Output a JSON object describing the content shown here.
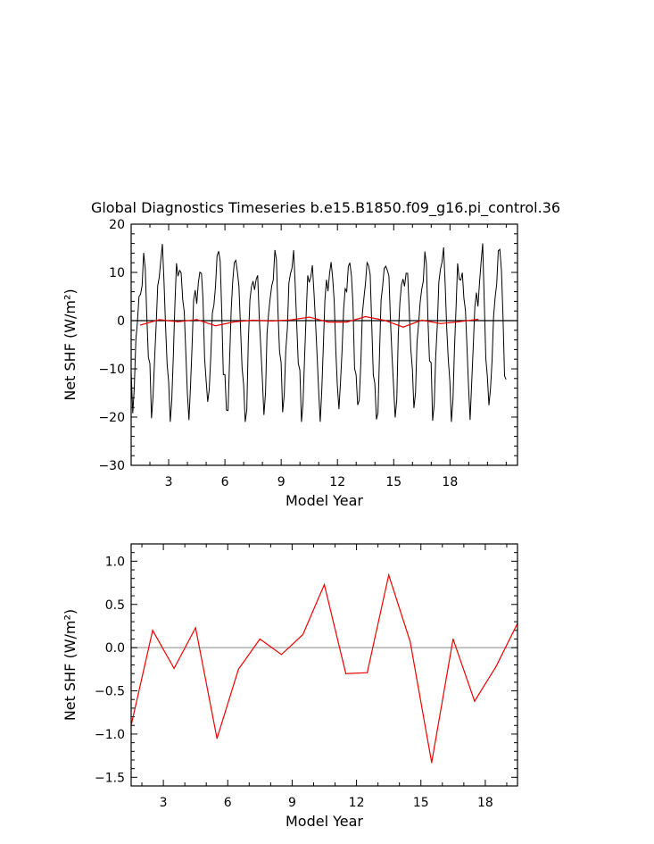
{
  "figure": {
    "title": "Global Diagnostics Timeseries b.e15.B1850.f09_g16.pi_control.36"
  },
  "colors": {
    "monthly": "#000000",
    "annual": "#ee0000",
    "zero_line": "#a0a0a0",
    "axes": "#000000"
  },
  "chart_data": [
    {
      "type": "line",
      "title": "Global Diagnostics Timeseries b.e15.B1850.f09_g16.pi_control.36",
      "xlabel": "Model Year",
      "ylabel": "Net SHF (W/m²)",
      "xlim": [
        1,
        21.6
      ],
      "ylim": [
        -30,
        20
      ],
      "x_ticks": [
        3,
        6,
        9,
        12,
        15,
        18
      ],
      "y_ticks": [
        -30,
        -20,
        -10,
        0,
        10,
        20
      ],
      "y_tick_labels": [
        "−30",
        "−20",
        "−10",
        "0",
        "10",
        "20"
      ],
      "grid": false,
      "monthly_series": {
        "start": 1.0,
        "step": 0.0833,
        "seasonal_cycle": [
          -12,
          -20,
          -16,
          -6,
          2,
          7,
          8,
          10,
          12,
          9,
          1,
          -8
        ],
        "description_values_range": [
          -21,
          16
        ]
      },
      "series": [
        {
          "name": "",
          "color": "#ee0000",
          "x": [
            1.5,
            2.5,
            3.5,
            4.5,
            5.5,
            6.5,
            7.5,
            8.5,
            9.5,
            10.5,
            11.5,
            12.5,
            13.5,
            14.5,
            15.5,
            16.5,
            17.5,
            18.5,
            19.5
          ],
          "y": [
            -0.9,
            0.2,
            -0.24,
            0.23,
            -1.05,
            -0.25,
            0.1,
            -0.08,
            0.15,
            0.73,
            -0.3,
            -0.29,
            0.84,
            0.07,
            -1.33,
            0.1,
            -0.62,
            -0.22,
            0.28
          ]
        }
      ]
    },
    {
      "type": "line",
      "title": "",
      "xlabel": "Model Year",
      "ylabel": "Net SHF (W/m²)",
      "xlim": [
        1.5,
        19.5
      ],
      "ylim": [
        -1.6,
        1.2
      ],
      "x_ticks": [
        3,
        6,
        9,
        12,
        15,
        18
      ],
      "y_ticks": [
        -1.5,
        -1.0,
        -0.5,
        0.0,
        0.5,
        1.0
      ],
      "y_tick_labels": [
        "−1.5",
        "−1.0",
        "−0.5",
        "0.0",
        "0.5",
        "1.0"
      ],
      "grid": false,
      "series": [
        {
          "name": "",
          "color": "#ee0000",
          "x": [
            1.5,
            2.5,
            3.5,
            4.5,
            5.5,
            6.5,
            7.5,
            8.5,
            9.5,
            10.5,
            11.5,
            12.5,
            13.5,
            14.5,
            15.5,
            16.5,
            17.5,
            18.5,
            19.5
          ],
          "y": [
            -0.9,
            0.2,
            -0.24,
            0.23,
            -1.05,
            -0.25,
            0.1,
            -0.08,
            0.15,
            0.73,
            -0.3,
            -0.29,
            0.84,
            0.07,
            -1.33,
            0.1,
            -0.62,
            -0.22,
            0.28
          ]
        }
      ]
    }
  ]
}
